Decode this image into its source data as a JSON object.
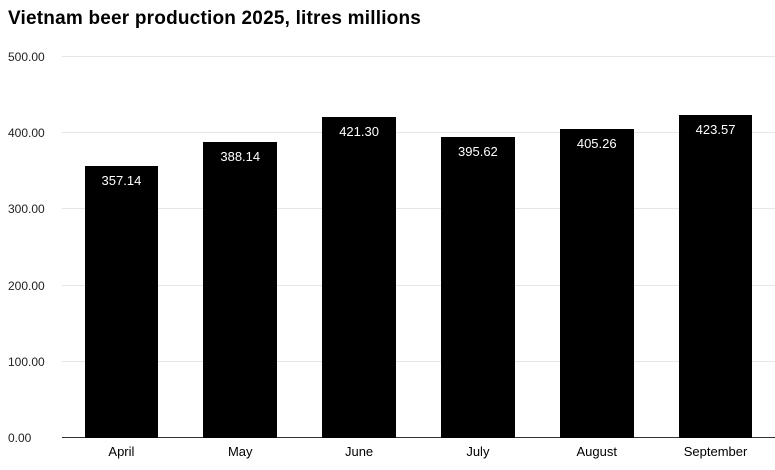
{
  "title": "Vietnam beer production 2025, litres millions",
  "chart_data": {
    "type": "bar",
    "title": "Vietnam beer production 2025, litres millions",
    "categories": [
      "April",
      "May",
      "June",
      "July",
      "August",
      "September"
    ],
    "values": [
      357.14,
      388.14,
      421.3,
      395.62,
      405.26,
      423.57
    ],
    "data_labels": [
      "357.14",
      "388.14",
      "421.30",
      "395.62",
      "405.26",
      "423.57"
    ],
    "xlabel": "",
    "ylabel": "",
    "ylim": [
      0,
      500
    ],
    "yticks": [
      "500.00",
      "400.00",
      "300.00",
      "200.00",
      "100.00",
      "0.00"
    ],
    "grid": true,
    "legend": "none",
    "colors": {
      "bar": "#000000",
      "bar_label": "#ffffff",
      "gridline": "#e6e6e6",
      "axis_line": "#333333",
      "background": "#ffffff",
      "text": "#000000"
    }
  }
}
